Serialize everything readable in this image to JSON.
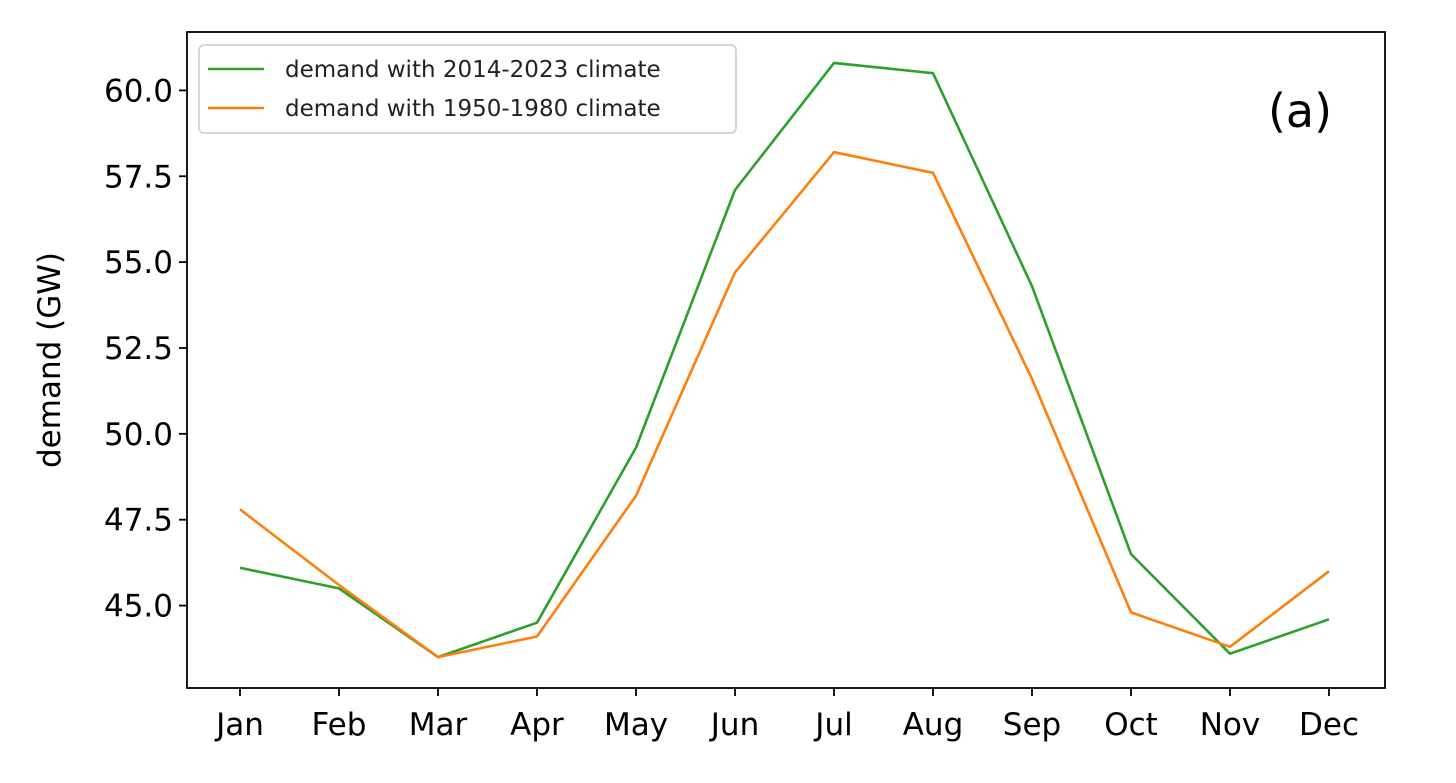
{
  "chart_data": {
    "type": "line",
    "title": "",
    "xlabel": "",
    "ylabel": "demand (GW)",
    "panel_label": "(a)",
    "categories": [
      "Jan",
      "Feb",
      "Mar",
      "Apr",
      "May",
      "Jun",
      "Jul",
      "Aug",
      "Sep",
      "Oct",
      "Nov",
      "Dec"
    ],
    "ylim": [
      42.6,
      61.7
    ],
    "yticks": [
      45.0,
      47.5,
      50.0,
      52.5,
      55.0,
      57.5,
      60.0
    ],
    "ytick_labels": [
      "45.0",
      "47.5",
      "50.0",
      "52.5",
      "55.0",
      "57.5",
      "60.0"
    ],
    "grid": false,
    "legend": "upper-left",
    "series": [
      {
        "name": "demand with 2014-2023 climate",
        "color": "#2ca02c",
        "values": [
          46.1,
          45.5,
          43.5,
          44.5,
          49.6,
          57.1,
          60.8,
          60.5,
          54.3,
          46.5,
          43.6,
          44.6
        ]
      },
      {
        "name": "demand with 1950-1980 climate",
        "color": "#ff7f0e",
        "values": [
          47.8,
          45.6,
          43.5,
          44.1,
          48.2,
          54.7,
          58.2,
          57.6,
          51.6,
          44.8,
          43.8,
          46.0
        ]
      }
    ]
  }
}
